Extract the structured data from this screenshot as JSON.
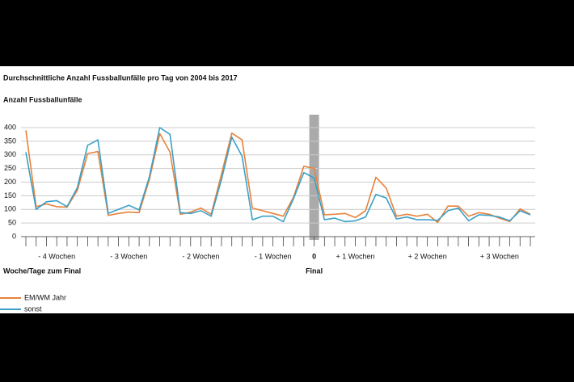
{
  "chart_data": {
    "type": "line",
    "title": "Durchschnittliche Anzahl Fussballunfälle pro Tag von 2004 bis 2017",
    "y_label": "Anzahl Fussballunfälle",
    "x_label": "Woche/Tage zum Final",
    "annotation": "Final",
    "week_labels": [
      "- 4 Wochen",
      "- 3 Wochen",
      "- 2 Wochen",
      "- 1 Wochen",
      "+ 1 Wochen",
      "+ 2 Wochen",
      "+ 3 Wochen"
    ],
    "categories": [
      null,
      null,
      null,
      null,
      null,
      null,
      null,
      null,
      null,
      null,
      null,
      null,
      null,
      null,
      null,
      null,
      null,
      null,
      null,
      null,
      null,
      null,
      null,
      null,
      null,
      null,
      null,
      null,
      "0",
      null,
      null,
      null,
      null,
      null,
      null,
      null,
      null,
      null,
      null,
      null,
      null,
      null,
      null,
      null,
      null,
      null,
      null,
      null,
      null,
      null
    ],
    "series": [
      {
        "name": "EM/WM Jahr",
        "color": "#e8823a",
        "values": [
          390,
          110,
          120,
          110,
          108,
          170,
          305,
          312,
          78,
          85,
          90,
          88,
          210,
          378,
          310,
          82,
          90,
          105,
          82,
          230,
          380,
          355,
          105,
          95,
          85,
          75,
          145,
          258,
          250,
          80,
          82,
          85,
          70,
          95,
          218,
          178,
          75,
          82,
          75,
          82,
          52,
          112,
          112,
          75,
          88,
          82,
          68,
          55,
          102,
          82
        ]
      },
      {
        "name": "sonst",
        "color": "#3aa0c8",
        "values": [
          310,
          100,
          128,
          132,
          110,
          180,
          335,
          355,
          85,
          100,
          115,
          98,
          220,
          400,
          375,
          88,
          85,
          95,
          75,
          210,
          365,
          295,
          62,
          75,
          75,
          55,
          140,
          235,
          215,
          62,
          68,
          55,
          58,
          72,
          155,
          142,
          65,
          72,
          62,
          62,
          60,
          95,
          105,
          58,
          80,
          78,
          72,
          58,
          95,
          80
        ]
      }
    ],
    "ylim": [
      0,
      400
    ],
    "yticks": [
      0,
      50,
      100,
      150,
      200,
      250,
      300,
      350,
      400
    ],
    "grid": true
  }
}
